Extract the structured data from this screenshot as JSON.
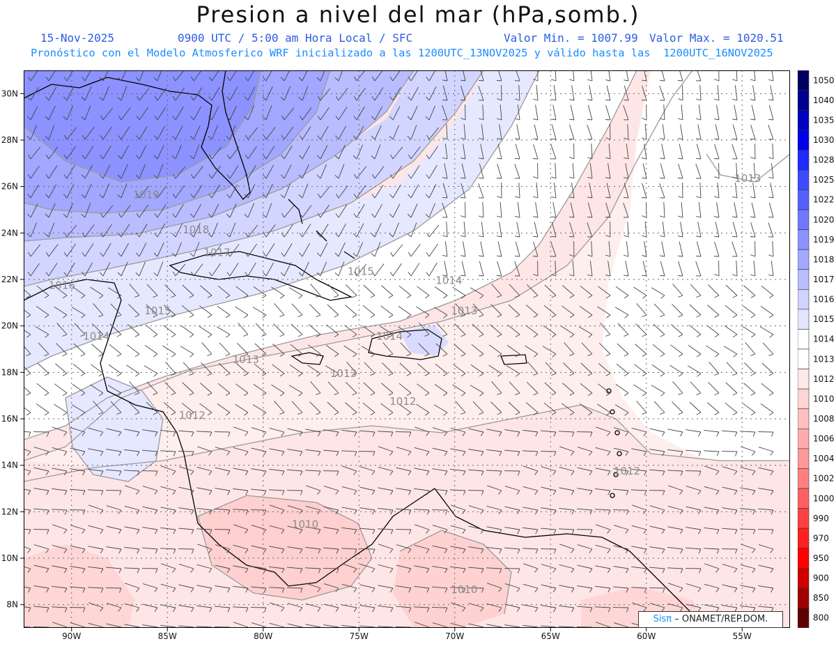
{
  "header": {
    "title": "Presion a nivel del mar (hPa,somb.)",
    "date": "15-Nov-2025",
    "time_info": "0900 UTC / 5:00 am Hora Local / SFC",
    "min_value": "Valor Min. = 1007.99",
    "max_value": "Valor Max. = 1020.51",
    "forecast_info": "Pronóstico con el Modelo Atmosferico WRF inicializado a las 1200UTC_13NOV2025 y válido hasta las  1200UTC_16NOV2025"
  },
  "map": {
    "lon_range": [
      -92.5,
      -52.5
    ],
    "lat_range": [
      7,
      31
    ],
    "lon_ticks": [
      "90W",
      "85W",
      "80W",
      "75W",
      "70W",
      "65W",
      "60W",
      "55W"
    ],
    "lon_tick_values": [
      -90,
      -85,
      -80,
      -75,
      -70,
      -65,
      -60,
      -55
    ],
    "lat_ticks": [
      "30N",
      "28N",
      "26N",
      "24N",
      "22N",
      "20N",
      "18N",
      "16N",
      "14N",
      "12N",
      "10N",
      "8N"
    ],
    "lat_tick_values": [
      30,
      28,
      26,
      24,
      22,
      20,
      18,
      16,
      14,
      12,
      10,
      8
    ],
    "isobar_labels": [
      {
        "text": "1019",
        "lon": -86.8,
        "lat": 25.5
      },
      {
        "text": "1018",
        "lon": -84.2,
        "lat": 24.0
      },
      {
        "text": "1017",
        "lon": -83.1,
        "lat": 23.0
      },
      {
        "text": "1016",
        "lon": -91.2,
        "lat": 21.6
      },
      {
        "text": "1015",
        "lon": -86.2,
        "lat": 20.5
      },
      {
        "text": "1015",
        "lon": -75.6,
        "lat": 22.2
      },
      {
        "text": "1014",
        "lon": -89.4,
        "lat": 19.4
      },
      {
        "text": "1014",
        "lon": -74.1,
        "lat": 19.4
      },
      {
        "text": "1014",
        "lon": -71.0,
        "lat": 21.8
      },
      {
        "text": "1013",
        "lon": -81.6,
        "lat": 18.4
      },
      {
        "text": "1013",
        "lon": -70.2,
        "lat": 20.5
      },
      {
        "text": "1013",
        "lon": -76.5,
        "lat": 17.8
      },
      {
        "text": "1013",
        "lon": -55.4,
        "lat": 26.2
      },
      {
        "text": "1012",
        "lon": -73.4,
        "lat": 16.6
      },
      {
        "text": "1012",
        "lon": -84.4,
        "lat": 16.0
      },
      {
        "text": "1012",
        "lon": -61.7,
        "lat": 13.6
      },
      {
        "text": "1010",
        "lon": -78.5,
        "lat": 11.3
      },
      {
        "text": "1010",
        "lon": -70.2,
        "lat": 8.5
      }
    ],
    "credit_sis": "Sisπ",
    "credit_text": "– ONAMET/REP.DOM."
  },
  "legend": {
    "levels": [
      "1050",
      "1040",
      "1035",
      "1030",
      "1028",
      "1025",
      "1022",
      "1020",
      "1019",
      "1018",
      "1017",
      "1016",
      "1015",
      "1014",
      "1013",
      "1012",
      "1010",
      "1008",
      "1006",
      "1004",
      "1002",
      "1000",
      "990",
      "970",
      "950",
      "900",
      "850",
      "800"
    ],
    "colors": [
      "#000060",
      "#00008f",
      "#0000c0",
      "#0000e8",
      "#1f2bff",
      "#3d4bff",
      "#5560ff",
      "#6f78ff",
      "#8c92ff",
      "#a3a8ff",
      "#babdff",
      "#d0d2ff",
      "#e4e5ff",
      "#ffffff",
      "#ffffff",
      "#ffe8e8",
      "#ffd4d4",
      "#ffc0c0",
      "#ffacac",
      "#ff9898",
      "#ff8080",
      "#ff6060",
      "#ff4040",
      "#ff2020",
      "#ff0000",
      "#d00000",
      "#a00000",
      "#600000"
    ]
  }
}
